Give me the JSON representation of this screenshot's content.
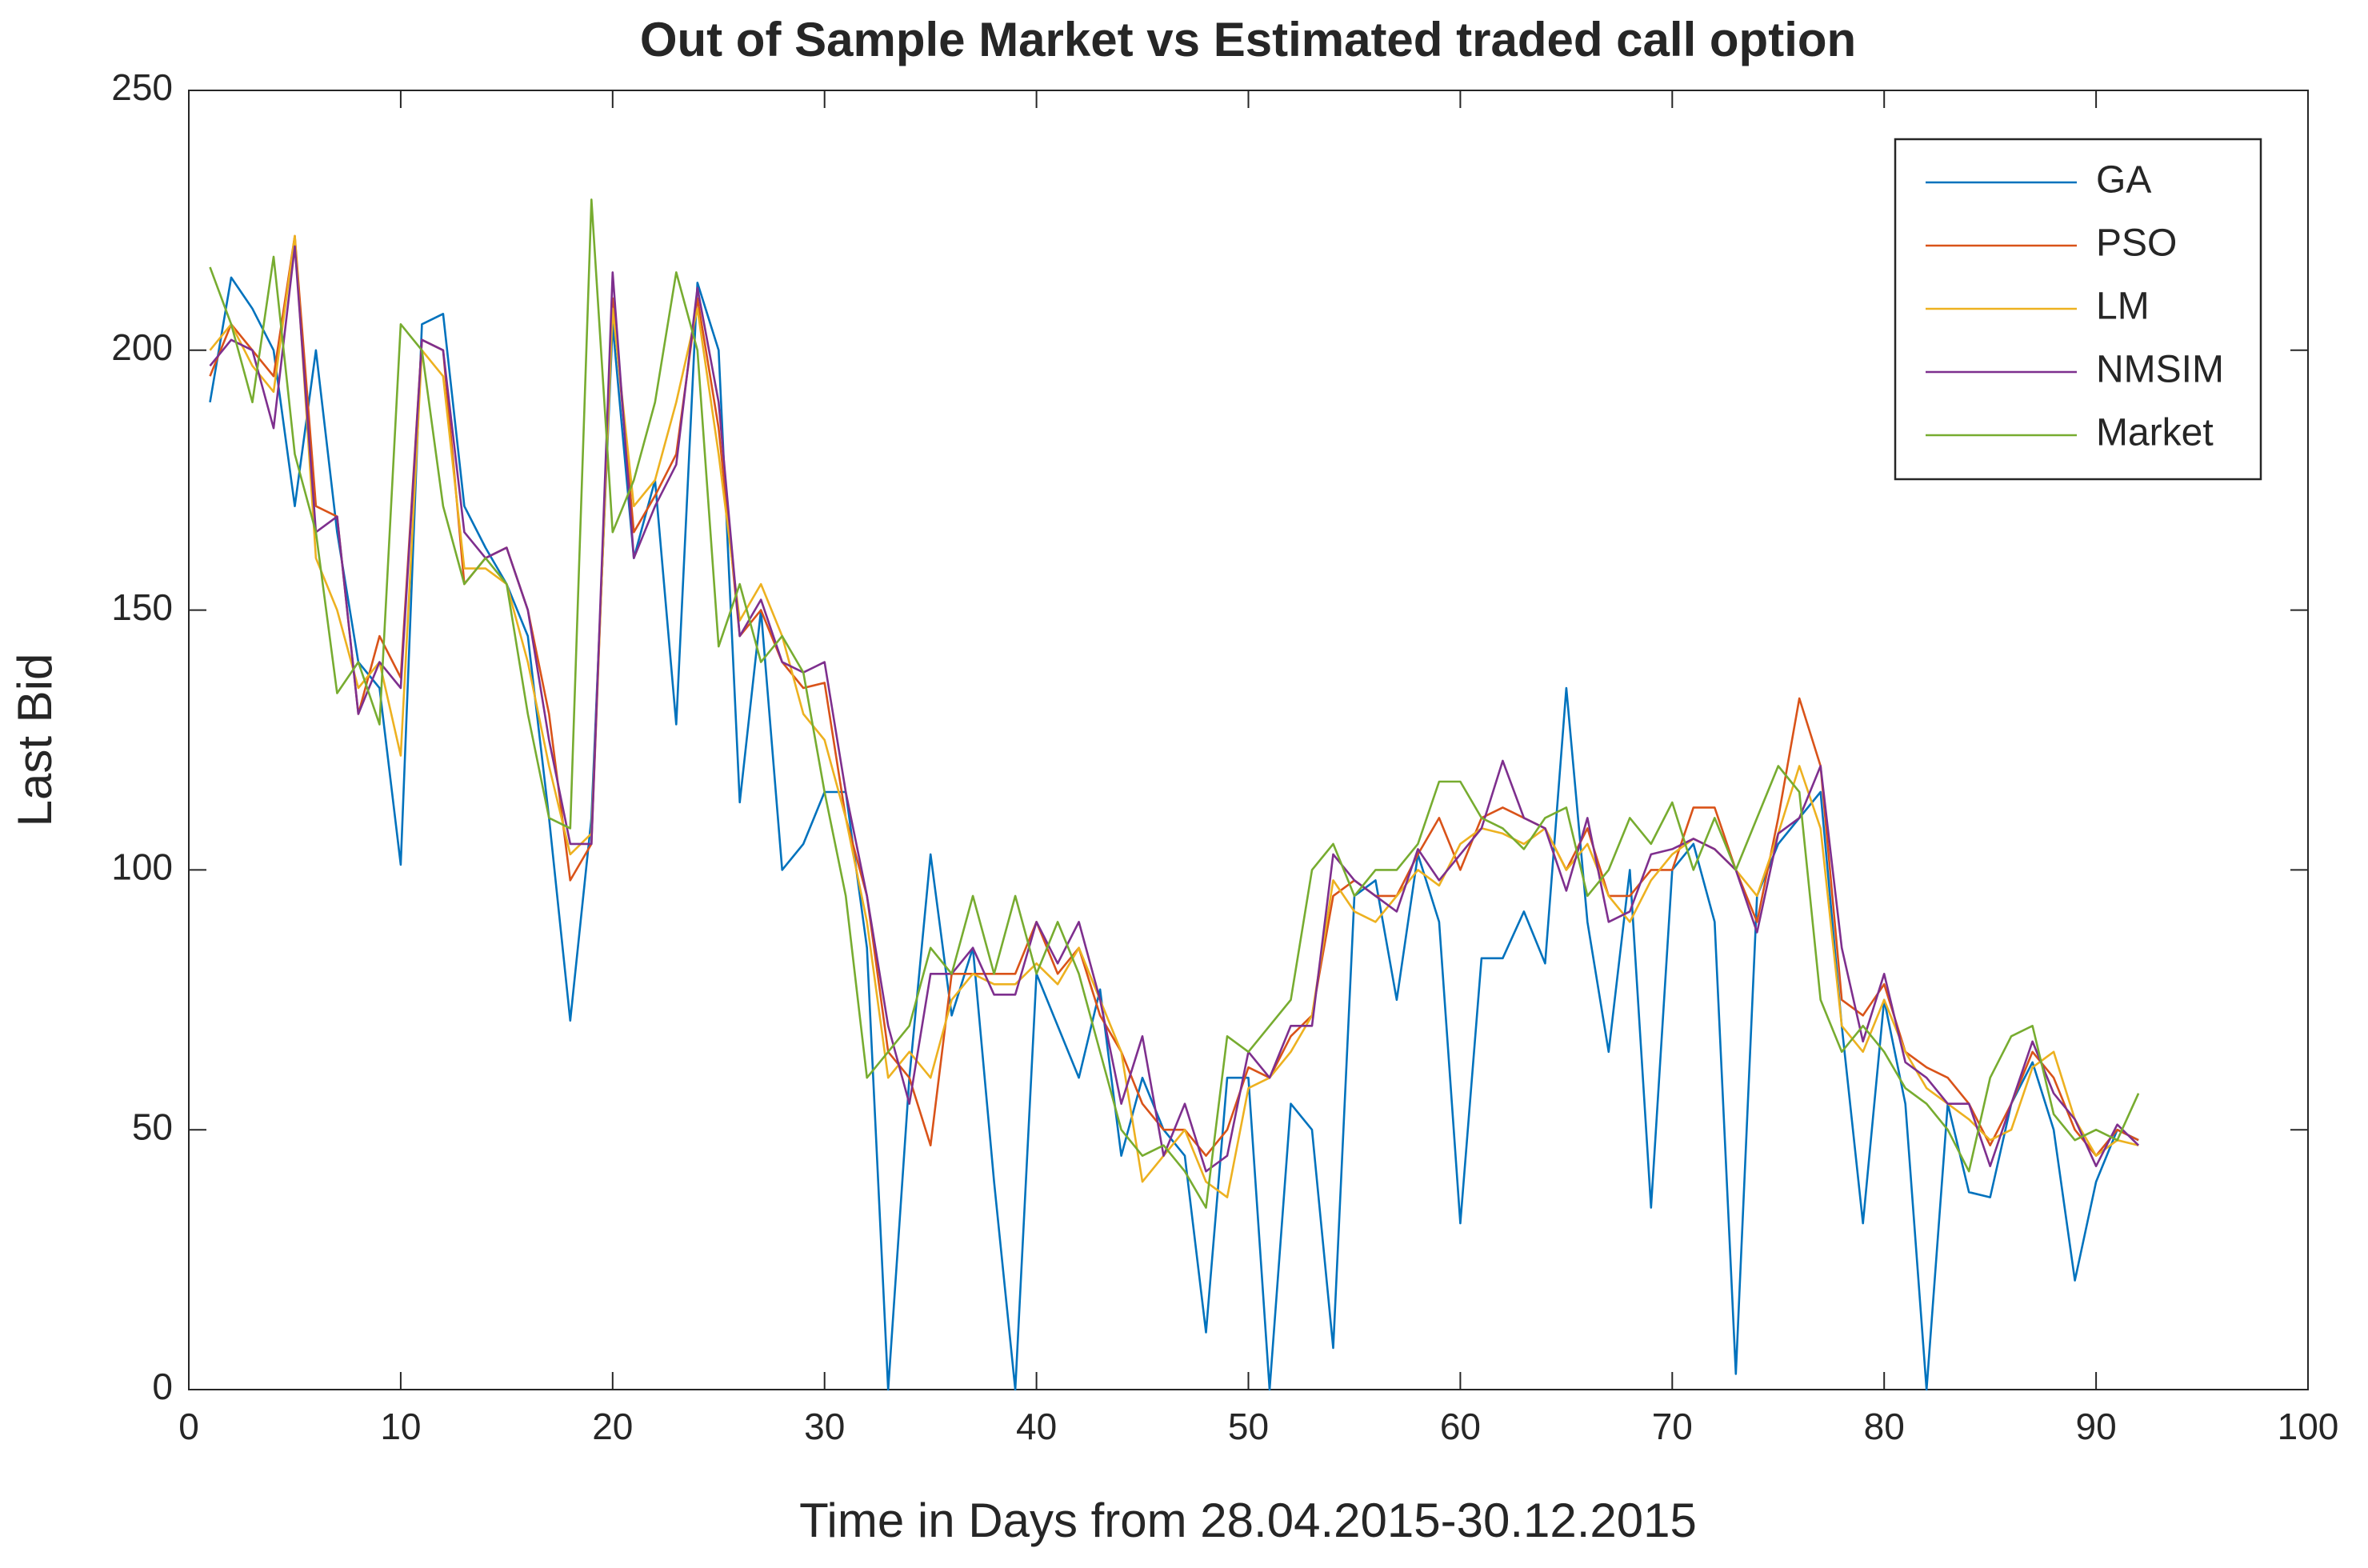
{
  "chart_data": {
    "type": "line",
    "title": "Out of Sample Market vs Estimated traded call option",
    "xlabel": "Time in Days from 28.04.2015-30.12.2015",
    "ylabel": "Last Bid",
    "x": [
      1,
      2,
      3,
      4,
      5,
      6,
      7,
      8,
      9,
      10,
      11,
      12,
      13,
      14,
      15,
      16,
      17,
      18,
      19,
      20,
      21,
      22,
      23,
      24,
      25,
      26,
      27,
      28,
      29,
      30,
      31,
      32,
      33,
      34,
      35,
      36,
      37,
      38,
      39,
      40,
      41,
      42,
      43,
      44,
      45,
      46,
      47,
      48,
      49,
      50,
      51,
      52,
      53,
      54,
      55,
      56,
      57,
      58,
      59,
      60,
      61,
      62,
      63,
      64,
      65,
      66,
      67,
      68,
      69,
      70,
      71,
      72,
      73,
      74,
      75,
      76,
      77,
      78,
      79,
      80,
      81,
      82,
      83,
      84,
      85,
      86,
      87,
      88,
      89,
      90,
      91,
      92
    ],
    "series": [
      {
        "name": "GA",
        "color": "#0072BD",
        "values": [
          190,
          214,
          208,
          200,
          170,
          200,
          165,
          140,
          135,
          101,
          205,
          207,
          170,
          162,
          155,
          145,
          110,
          71,
          110,
          205,
          160,
          175,
          128,
          213,
          200,
          113,
          150,
          100,
          105,
          115,
          115,
          85,
          0,
          60,
          103,
          72,
          85,
          40,
          0,
          80,
          70,
          60,
          77,
          45,
          60,
          50,
          45,
          11,
          60,
          60,
          0,
          55,
          50,
          8,
          95,
          98,
          75,
          103,
          90,
          32,
          83,
          83,
          92,
          82,
          135,
          90,
          65,
          100,
          35,
          100,
          105,
          90,
          3,
          95,
          105,
          110,
          115,
          70,
          32,
          75,
          55,
          0,
          55,
          38,
          37,
          55,
          63,
          50,
          21,
          40,
          50,
          48
        ]
      },
      {
        "name": "PSO",
        "color": "#D95319",
        "values": [
          195,
          205,
          200,
          195,
          222,
          170,
          168,
          130,
          145,
          137,
          202,
          200,
          155,
          160,
          162,
          150,
          130,
          98,
          105,
          210,
          165,
          172,
          180,
          210,
          185,
          145,
          150,
          140,
          135,
          136,
          110,
          95,
          65,
          60,
          47,
          80,
          80,
          80,
          80,
          90,
          80,
          85,
          72,
          65,
          55,
          50,
          50,
          45,
          50,
          62,
          60,
          68,
          72,
          95,
          98,
          95,
          95,
          103,
          110,
          100,
          110,
          112,
          110,
          108,
          100,
          108,
          95,
          95,
          100,
          100,
          112,
          112,
          100,
          90,
          110,
          133,
          120,
          75,
          72,
          78,
          65,
          62,
          60,
          55,
          47,
          55,
          65,
          60,
          50,
          45,
          50,
          48
        ]
      },
      {
        "name": "LM",
        "color": "#EDB120",
        "values": [
          200,
          205,
          197,
          192,
          222,
          160,
          150,
          135,
          140,
          122,
          200,
          195,
          158,
          158,
          155,
          140,
          120,
          103,
          107,
          208,
          170,
          175,
          190,
          208,
          180,
          148,
          155,
          145,
          130,
          125,
          110,
          90,
          60,
          65,
          60,
          75,
          80,
          78,
          78,
          82,
          78,
          85,
          75,
          65,
          40,
          45,
          50,
          40,
          37,
          58,
          60,
          65,
          72,
          98,
          92,
          90,
          95,
          100,
          97,
          105,
          108,
          107,
          105,
          108,
          100,
          105,
          95,
          90,
          98,
          103,
          106,
          104,
          100,
          95,
          107,
          120,
          108,
          70,
          65,
          75,
          65,
          58,
          55,
          52,
          48,
          50,
          62,
          65,
          52,
          45,
          48,
          47
        ]
      },
      {
        "name": "NMSIM",
        "color": "#7E2F8E",
        "values": [
          197,
          202,
          200,
          185,
          220,
          165,
          168,
          130,
          140,
          135,
          202,
          200,
          165,
          160,
          162,
          150,
          125,
          105,
          105,
          215,
          160,
          170,
          178,
          212,
          190,
          145,
          152,
          140,
          138,
          140,
          115,
          95,
          70,
          55,
          80,
          80,
          85,
          76,
          76,
          90,
          82,
          90,
          75,
          55,
          68,
          45,
          55,
          42,
          45,
          65,
          60,
          70,
          70,
          103,
          98,
          95,
          92,
          104,
          98,
          103,
          108,
          121,
          110,
          108,
          96,
          110,
          90,
          92,
          103,
          104,
          106,
          104,
          100,
          88,
          107,
          110,
          120,
          85,
          67,
          80,
          63,
          60,
          55,
          55,
          43,
          55,
          67,
          57,
          52,
          43,
          51,
          47
        ]
      },
      {
        "name": "Market",
        "color": "#77AC30",
        "values": [
          216,
          205,
          190,
          218,
          180,
          165,
          134,
          140,
          128,
          205,
          200,
          170,
          155,
          160,
          155,
          130,
          110,
          108,
          229,
          165,
          175,
          190,
          215,
          200,
          143,
          155,
          140,
          145,
          138,
          115,
          95,
          60,
          65,
          70,
          85,
          80,
          95,
          80,
          95,
          80,
          90,
          80,
          65,
          50,
          45,
          47,
          42,
          35,
          68,
          65,
          70,
          75,
          100,
          105,
          95,
          100,
          100,
          105,
          117,
          117,
          110,
          108,
          104,
          110,
          112,
          95,
          100,
          110,
          105,
          113,
          100,
          110,
          100,
          110,
          120,
          115,
          75,
          65,
          70,
          65,
          58,
          55,
          50,
          42,
          60,
          68,
          70,
          53,
          48,
          50,
          48,
          57
        ]
      }
    ],
    "xlim": [
      0,
      100
    ],
    "xticks": [
      0,
      10,
      20,
      30,
      40,
      50,
      60,
      70,
      80,
      90,
      100
    ],
    "ylim": [
      0,
      250
    ],
    "yticks": [
      0,
      50,
      100,
      150,
      200,
      250
    ],
    "grid": false,
    "legend": "upper right"
  }
}
